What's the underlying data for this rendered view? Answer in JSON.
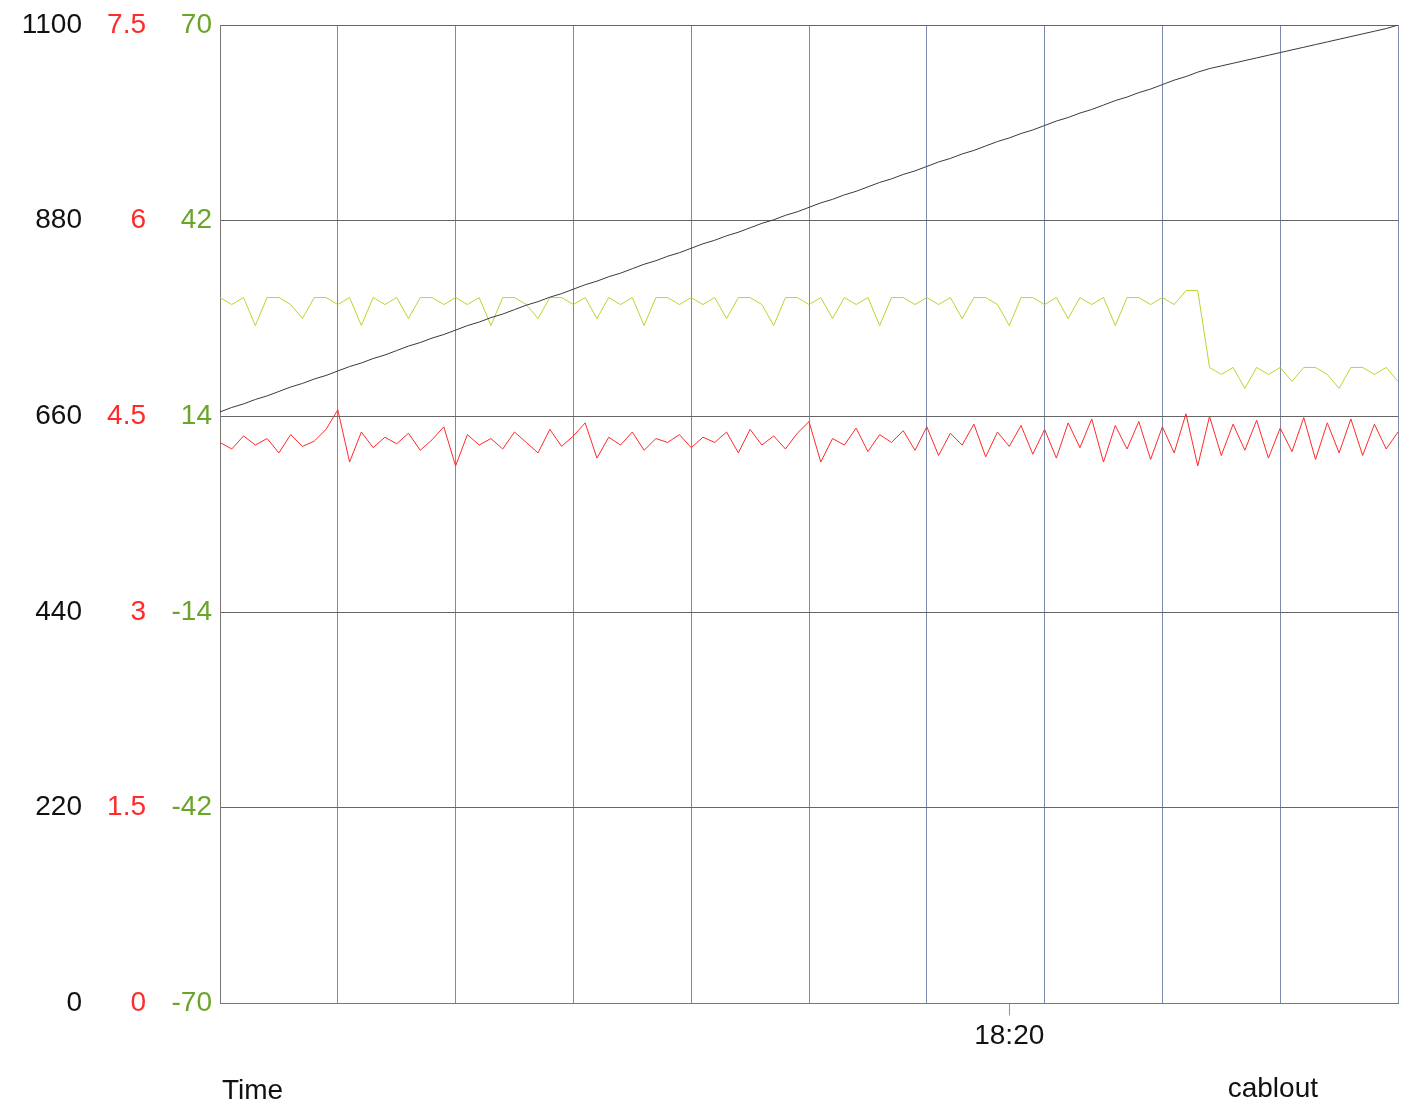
{
  "chart_data": {
    "type": "line",
    "xlabel": "Time",
    "annotations": [
      "cablout"
    ],
    "grid": true,
    "marker": "none",
    "categories": [
      null,
      null,
      null,
      null,
      null,
      null,
      null,
      null,
      null,
      null,
      null,
      null,
      null,
      null,
      null,
      null,
      null,
      null,
      null,
      null,
      null,
      null,
      null,
      null,
      null,
      null,
      null,
      null,
      null,
      null,
      null,
      null,
      null,
      null,
      null,
      null,
      null,
      null,
      null,
      null,
      null,
      null,
      null,
      null,
      null,
      null,
      null,
      null,
      null,
      null,
      null,
      null,
      null,
      null,
      null,
      null,
      null,
      null,
      null,
      null,
      null,
      null,
      null,
      null,
      null,
      null,
      null,
      "18:20",
      null,
      null,
      null,
      null,
      null,
      null,
      null,
      null,
      null,
      null,
      null,
      null,
      null,
      null,
      null,
      null,
      null,
      null,
      null,
      null,
      null,
      null,
      null,
      null,
      null,
      null,
      null,
      null,
      null,
      null,
      null,
      null,
      null
    ],
    "ylim": [
      0,
      1100
    ],
    "yticks": [
      0,
      220,
      440,
      660,
      880,
      1100
    ],
    "y2lim": [
      0,
      7.5
    ],
    "y2ticks": [
      0,
      1.5,
      3,
      4.5,
      6,
      7.5
    ],
    "y3lim": [
      -70,
      70
    ],
    "y3ticks": [
      -70,
      -42,
      -14,
      14,
      42,
      70
    ],
    "series": [
      {
        "color": "#3a3a3a",
        "values": [
          665,
          670,
          674,
          679,
          683,
          688,
          693,
          697,
          702,
          706,
          711,
          716,
          720,
          725,
          729,
          734,
          739,
          743,
          748,
          752,
          757,
          762,
          766,
          771,
          775,
          780,
          785,
          789,
          794,
          798,
          803,
          808,
          812,
          817,
          821,
          826,
          831,
          835,
          840,
          844,
          849,
          854,
          858,
          863,
          867,
          872,
          877,
          881,
          886,
          890,
          895,
          900,
          904,
          909,
          913,
          918,
          923,
          927,
          932,
          936,
          941,
          946,
          950,
          955,
          959,
          964,
          969,
          973,
          978,
          982,
          987,
          992,
          996,
          1001,
          1005,
          1010,
          1015,
          1019,
          1024,
          1028,
          1033,
          1038,
          1042,
          1047,
          1051,
          1054,
          1057,
          1060,
          1063,
          1066,
          1069,
          1072,
          1075,
          1078,
          1081,
          1084,
          1087,
          1090,
          1093,
          1096,
          1100
        ]
      },
      {
        "color": "#ff2a2a",
        "axis": "y2",
        "values": [
          4.3,
          4.25,
          4.35,
          4.28,
          4.33,
          4.22,
          4.36,
          4.27,
          4.31,
          4.4,
          4.55,
          4.15,
          4.38,
          4.26,
          4.34,
          4.29,
          4.37,
          4.24,
          4.32,
          4.42,
          4.12,
          4.36,
          4.28,
          4.33,
          4.25,
          4.38,
          4.3,
          4.22,
          4.4,
          4.27,
          4.35,
          4.45,
          4.18,
          4.34,
          4.28,
          4.38,
          4.24,
          4.33,
          4.3,
          4.36,
          4.26,
          4.34,
          4.3,
          4.38,
          4.22,
          4.4,
          4.28,
          4.35,
          4.25,
          4.37,
          4.46,
          4.15,
          4.33,
          4.28,
          4.41,
          4.23,
          4.36,
          4.3,
          4.39,
          4.24,
          4.42,
          4.2,
          4.37,
          4.28,
          4.44,
          4.19,
          4.38,
          4.27,
          4.43,
          4.21,
          4.4,
          4.18,
          4.45,
          4.26,
          4.48,
          4.15,
          4.43,
          4.25,
          4.46,
          4.17,
          4.42,
          4.22,
          4.52,
          4.12,
          4.5,
          4.2,
          4.44,
          4.24,
          4.47,
          4.18,
          4.41,
          4.23,
          4.49,
          4.17,
          4.45,
          4.22,
          4.48,
          4.2,
          4.44,
          4.25,
          4.38
        ]
      },
      {
        "color": "#b8d630",
        "axis": "y3",
        "values": [
          31,
          30,
          31,
          27,
          31,
          31,
          30,
          28,
          31,
          31,
          30,
          31,
          27,
          31,
          30,
          31,
          28,
          31,
          31,
          30,
          31,
          30,
          31,
          27,
          31,
          31,
          30,
          28,
          31,
          31,
          30,
          31,
          28,
          31,
          30,
          31,
          27,
          31,
          31,
          30,
          31,
          30,
          31,
          28,
          31,
          31,
          30,
          27,
          31,
          31,
          30,
          31,
          28,
          31,
          30,
          31,
          27,
          31,
          31,
          30,
          31,
          30,
          31,
          28,
          31,
          31,
          30,
          27,
          31,
          31,
          30,
          31,
          28,
          31,
          30,
          31,
          27,
          31,
          31,
          30,
          31,
          30,
          32,
          32,
          21,
          20,
          21,
          18,
          21,
          20,
          21,
          19,
          21,
          21,
          20,
          18,
          21,
          21,
          20,
          21,
          19
        ]
      }
    ]
  }
}
